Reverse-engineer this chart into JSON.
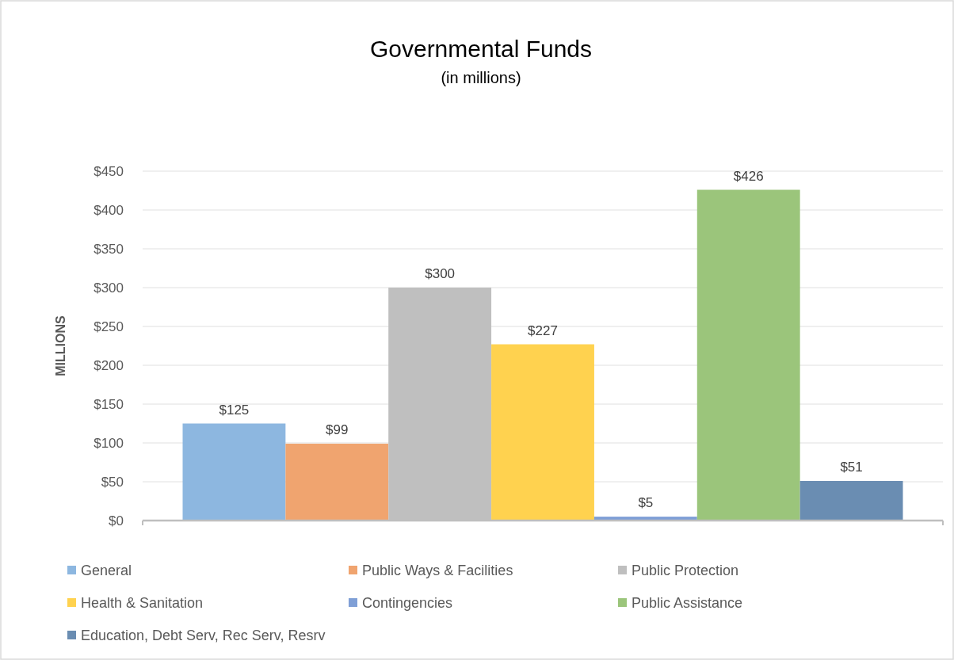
{
  "chart_data": {
    "type": "bar",
    "title": "Governmental Funds",
    "subtitle": "(in millions)",
    "ylabel": "MILLIONS",
    "categories": [
      null
    ],
    "series": [
      {
        "name": "General",
        "color": "#8db7e0",
        "values": [
          125
        ],
        "value_labels": [
          "$125"
        ]
      },
      {
        "name": "Public Ways & Facilities",
        "color": "#f0a46f",
        "values": [
          99
        ],
        "value_labels": [
          "$99"
        ]
      },
      {
        "name": "Public Protection",
        "color": "#bfbfbf",
        "values": [
          300
        ],
        "value_labels": [
          "$300"
        ]
      },
      {
        "name": "Health & Sanitation",
        "color": "#ffd24f",
        "values": [
          227
        ],
        "value_labels": [
          "$227"
        ]
      },
      {
        "name": "Contingencies",
        "color": "#7f9fd6",
        "values": [
          5
        ],
        "value_labels": [
          "$5"
        ]
      },
      {
        "name": "Public Assistance",
        "color": "#9bc57b",
        "values": [
          426
        ],
        "value_labels": [
          "$426"
        ]
      },
      {
        "name": "Education, Debt Serv, Rec Serv, Resrv",
        "color": "#6a8db2",
        "values": [
          51
        ],
        "value_labels": [
          "$51"
        ]
      }
    ],
    "ylim": [
      0,
      450
    ],
    "yticks": [
      {
        "value": 0,
        "label": "$0"
      },
      {
        "value": 50,
        "label": "$50"
      },
      {
        "value": 100,
        "label": "$100"
      },
      {
        "value": 150,
        "label": "$150"
      },
      {
        "value": 200,
        "label": "$200"
      },
      {
        "value": 250,
        "label": "$250"
      },
      {
        "value": 300,
        "label": "$300"
      },
      {
        "value": 350,
        "label": "$350"
      },
      {
        "value": 400,
        "label": "$400"
      },
      {
        "value": 450,
        "label": "$450"
      }
    ],
    "grid": "y",
    "legend": "bottom"
  }
}
